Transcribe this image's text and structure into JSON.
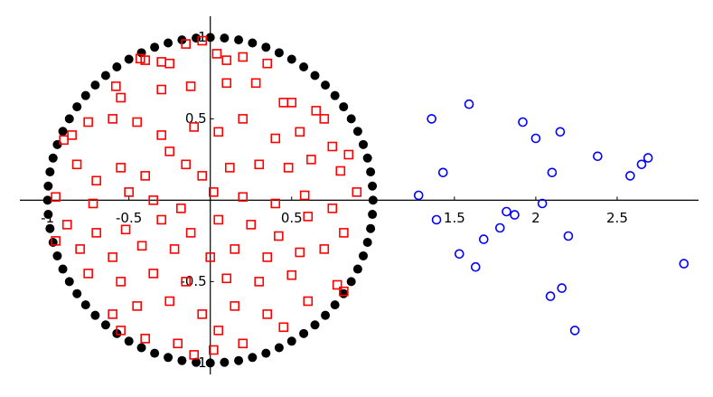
{
  "chart_data": {
    "type": "scatter",
    "xlim": [
      -1.17,
      3.0
    ],
    "ylim": [
      -1.07,
      1.13
    ],
    "xticks": [
      -1,
      -0.5,
      0.5,
      1.5,
      2,
      2.5
    ],
    "yticks": [
      -1,
      -0.5,
      0.5,
      1
    ],
    "series": [
      {
        "color": "#000000",
        "marker": "dot",
        "x": [
          1,
          0.996,
          0.985,
          0.966,
          0.94,
          0.906,
          0.866,
          0.819,
          0.766,
          0.707,
          0.643,
          0.574,
          0.5,
          0.423,
          0.342,
          0.259,
          0.174,
          0.087,
          0,
          -0.087,
          -0.174,
          -0.259,
          -0.342,
          -0.423,
          -0.5,
          -0.574,
          -0.643,
          -0.707,
          -0.766,
          -0.819,
          -0.866,
          -0.906,
          -0.94,
          -0.966,
          -0.985,
          -0.996,
          -1,
          -0.996,
          -0.985,
          -0.966,
          -0.94,
          -0.906,
          -0.866,
          -0.819,
          -0.766,
          -0.707,
          -0.643,
          -0.574,
          -0.5,
          -0.423,
          -0.342,
          -0.259,
          -0.174,
          -0.087,
          0,
          0.087,
          0.174,
          0.259,
          0.342,
          0.423,
          0.5,
          0.574,
          0.643,
          0.707,
          0.766,
          0.819,
          0.866,
          0.906,
          0.94,
          0.966,
          0.985,
          0.996
        ],
        "y": [
          0,
          0.087,
          0.174,
          0.259,
          0.342,
          0.423,
          0.5,
          0.574,
          0.643,
          0.707,
          0.766,
          0.819,
          0.866,
          0.906,
          0.94,
          0.966,
          0.985,
          0.996,
          1,
          0.996,
          0.985,
          0.966,
          0.94,
          0.906,
          0.866,
          0.819,
          0.766,
          0.707,
          0.643,
          0.574,
          0.5,
          0.423,
          0.342,
          0.259,
          0.174,
          0.087,
          0,
          -0.087,
          -0.174,
          -0.259,
          -0.342,
          -0.423,
          -0.5,
          -0.574,
          -0.643,
          -0.707,
          -0.766,
          -0.819,
          -0.866,
          -0.906,
          -0.94,
          -0.966,
          -0.985,
          -0.996,
          -1,
          -0.996,
          -0.985,
          -0.966,
          -0.94,
          -0.906,
          -0.866,
          -0.819,
          -0.766,
          -0.707,
          -0.643,
          -0.574,
          -0.5,
          -0.423,
          -0.342,
          -0.259,
          -0.174,
          -0.087
        ]
      },
      {
        "color": "#ff0000",
        "marker": "square",
        "x": [
          -0.43,
          -0.4,
          -0.3,
          -0.25,
          -0.15,
          -0.05,
          0.04,
          0.1,
          0.2,
          0.35,
          -0.58,
          -0.55,
          -0.3,
          -0.12,
          0.1,
          0.28,
          0.45,
          0.5,
          0.65,
          0.7,
          -0.9,
          -0.85,
          -0.75,
          -0.6,
          -0.45,
          -0.3,
          -0.1,
          0.05,
          0.2,
          0.4,
          0.55,
          0.75,
          0.85,
          -0.82,
          -0.7,
          -0.55,
          -0.4,
          -0.25,
          -0.15,
          -0.05,
          0.12,
          0.3,
          0.48,
          0.62,
          0.8,
          0.9,
          -0.95,
          -0.72,
          -0.5,
          -0.35,
          -0.18,
          0.02,
          0.2,
          0.4,
          0.58,
          0.75,
          -0.88,
          -0.7,
          -0.52,
          -0.3,
          -0.12,
          0.05,
          0.25,
          0.42,
          0.6,
          0.82,
          -0.95,
          -0.8,
          -0.6,
          -0.42,
          -0.22,
          0,
          0.15,
          0.35,
          0.55,
          0.7,
          -0.75,
          -0.55,
          -0.35,
          -0.15,
          0.1,
          0.3,
          0.5,
          0.78,
          0.82,
          -0.6,
          -0.45,
          -0.25,
          -0.05,
          0.15,
          0.35,
          0.6,
          -0.4,
          -0.2,
          0.02,
          0.2,
          -0.1,
          0.05,
          -0.55,
          0.45
        ],
        "y": [
          0.87,
          0.86,
          0.85,
          0.84,
          0.96,
          0.98,
          0.9,
          0.86,
          0.88,
          0.84,
          0.7,
          0.63,
          0.68,
          0.7,
          0.72,
          0.72,
          0.6,
          0.6,
          0.55,
          0.5,
          0.37,
          0.4,
          0.48,
          0.5,
          0.48,
          0.4,
          0.45,
          0.42,
          0.5,
          0.38,
          0.42,
          0.33,
          0.28,
          0.22,
          0.12,
          0.2,
          0.15,
          0.3,
          0.22,
          0.15,
          0.2,
          0.22,
          0.2,
          0.25,
          0.18,
          0.05,
          0.02,
          -0.02,
          0.05,
          0,
          -0.05,
          0.05,
          0.02,
          -0.02,
          0.03,
          -0.05,
          -0.15,
          -0.2,
          -0.18,
          -0.12,
          -0.2,
          -0.12,
          -0.15,
          -0.22,
          -0.1,
          -0.2,
          -0.25,
          -0.3,
          -0.35,
          -0.28,
          -0.3,
          -0.35,
          -0.3,
          -0.35,
          -0.32,
          -0.3,
          -0.45,
          -0.5,
          -0.45,
          -0.5,
          -0.48,
          -0.5,
          -0.46,
          -0.52,
          -0.56,
          -0.7,
          -0.65,
          -0.62,
          -0.7,
          -0.65,
          -0.7,
          -0.62,
          -0.85,
          -0.88,
          -0.92,
          -0.88,
          -0.95,
          -0.8,
          -0.8,
          -0.78
        ]
      },
      {
        "color": "#0000ff",
        "marker": "circle",
        "x": [
          1.28,
          1.36,
          1.59,
          1.43,
          1.39,
          1.53,
          1.63,
          1.68,
          1.78,
          1.82,
          1.87,
          1.92,
          2.0,
          2.04,
          2.1,
          2.15,
          2.2,
          2.09,
          2.16,
          2.24,
          2.38,
          2.58,
          2.65,
          2.69,
          2.91
        ],
        "y": [
          0.03,
          0.5,
          0.59,
          0.17,
          -0.12,
          -0.33,
          -0.41,
          -0.24,
          -0.17,
          -0.07,
          -0.09,
          0.48,
          0.38,
          -0.02,
          0.17,
          0.42,
          -0.22,
          -0.59,
          -0.54,
          -0.8,
          0.27,
          0.15,
          0.22,
          0.26,
          -0.39
        ]
      }
    ]
  }
}
